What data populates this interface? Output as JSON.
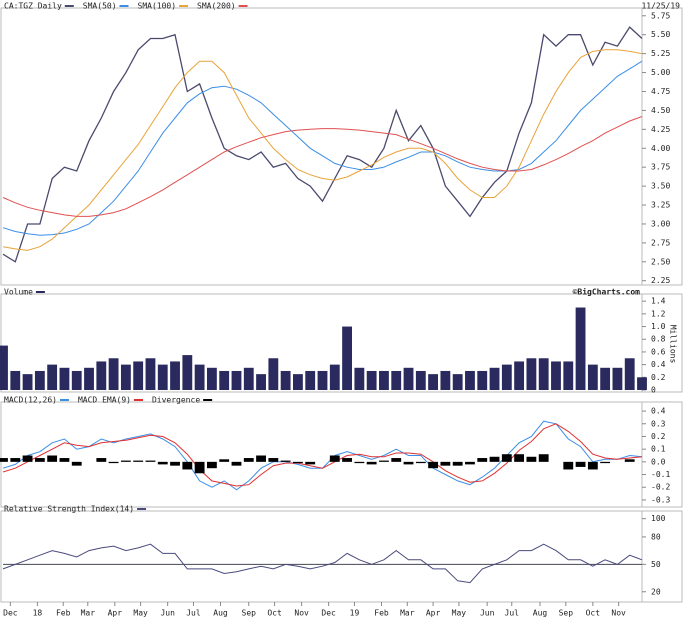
{
  "chart_data": [
    {
      "type": "line",
      "date": "11/25/19",
      "xlim": [
        0,
        52
      ],
      "ylim": [
        2.22,
        5.8
      ],
      "yticks": [
        2.25,
        {
          "value": 2.5,
          "label": "2.50"
        },
        2.75,
        {
          "value": 3,
          "label": "3.00"
        },
        3.25,
        {
          "value": 3.5,
          "label": "3.50"
        },
        3.75,
        {
          "value": 4,
          "label": "4.00"
        },
        4.25,
        {
          "value": 4.5,
          "label": "4.50"
        },
        4.75,
        {
          "value": 5,
          "label": "5.00"
        },
        5.25,
        {
          "value": 5.5,
          "label": "5.50"
        },
        5.75
      ],
      "series": [
        {
          "name": "CA:TGZ Daily",
          "color": "#4a4a6e",
          "values": [
            2.6,
            2.5,
            3.0,
            3.0,
            3.6,
            3.75,
            3.7,
            4.1,
            4.4,
            4.75,
            5.0,
            5.3,
            5.45,
            5.45,
            5.5,
            4.75,
            4.85,
            4.4,
            4.0,
            3.9,
            3.85,
            3.95,
            3.75,
            3.8,
            3.6,
            3.5,
            3.3,
            3.6,
            3.9,
            3.85,
            3.75,
            4.0,
            4.5,
            4.1,
            4.3,
            4.0,
            3.5,
            3.3,
            3.1,
            3.35,
            3.55,
            3.7,
            4.2,
            4.6,
            5.5,
            5.35,
            5.5,
            5.5,
            5.1,
            5.4,
            5.35,
            5.6,
            5.45
          ]
        },
        {
          "name": "SMA(50)",
          "color": "#3a8ee6",
          "values": [
            2.95,
            2.9,
            2.87,
            2.85,
            2.86,
            2.88,
            2.93,
            3.0,
            3.15,
            3.3,
            3.5,
            3.7,
            3.95,
            4.2,
            4.4,
            4.6,
            4.72,
            4.8,
            4.82,
            4.78,
            4.7,
            4.6,
            4.45,
            4.3,
            4.15,
            4.0,
            3.9,
            3.8,
            3.75,
            3.72,
            3.72,
            3.75,
            3.82,
            3.88,
            3.95,
            3.95,
            3.9,
            3.82,
            3.75,
            3.72,
            3.7,
            3.7,
            3.72,
            3.8,
            3.95,
            4.1,
            4.3,
            4.5,
            4.65,
            4.8,
            4.95,
            5.05,
            5.15
          ]
        },
        {
          "name": "SMA(100)",
          "color": "#e8a33a",
          "values": [
            2.7,
            2.67,
            2.65,
            2.7,
            2.8,
            2.95,
            3.1,
            3.25,
            3.45,
            3.65,
            3.85,
            4.05,
            4.3,
            4.55,
            4.8,
            5.0,
            5.15,
            5.15,
            5.0,
            4.7,
            4.4,
            4.2,
            4.0,
            3.85,
            3.72,
            3.65,
            3.6,
            3.58,
            3.62,
            3.7,
            3.78,
            3.88,
            3.95,
            4.0,
            4.0,
            3.95,
            3.8,
            3.6,
            3.45,
            3.35,
            3.35,
            3.5,
            3.75,
            4.1,
            4.45,
            4.75,
            5.0,
            5.2,
            5.28,
            5.3,
            5.3,
            5.28,
            5.25
          ]
        },
        {
          "name": "SMA(200)",
          "color": "#e05050",
          "values": [
            3.35,
            3.28,
            3.22,
            3.18,
            3.15,
            3.12,
            3.1,
            3.1,
            3.12,
            3.15,
            3.2,
            3.28,
            3.36,
            3.45,
            3.55,
            3.65,
            3.75,
            3.85,
            3.95,
            4.02,
            4.08,
            4.14,
            4.18,
            4.22,
            4.24,
            4.25,
            4.26,
            4.26,
            4.25,
            4.24,
            4.22,
            4.2,
            4.18,
            4.12,
            4.06,
            4.0,
            3.93,
            3.86,
            3.8,
            3.75,
            3.72,
            3.7,
            3.7,
            3.72,
            3.78,
            3.85,
            3.93,
            4.02,
            4.1,
            4.2,
            4.28,
            4.36,
            4.42
          ]
        }
      ]
    },
    {
      "type": "bar",
      "credit": "©BigCharts.com",
      "y_label": "Millions",
      "xlim": [
        0,
        52
      ],
      "ylim": [
        0,
        1.45
      ],
      "yticks": [
        0,
        0.2,
        0.4,
        0.6,
        0.8,
        {
          "value": 1,
          "label": "1.0"
        },
        1.2,
        1.4
      ],
      "series": [
        {
          "name": "Volume",
          "color": "#2a2a5e",
          "values": [
            0.7,
            0.3,
            0.25,
            0.3,
            0.4,
            0.35,
            0.3,
            0.35,
            0.45,
            0.5,
            0.4,
            0.45,
            0.5,
            0.4,
            0.45,
            0.55,
            0.4,
            0.35,
            0.3,
            0.3,
            0.35,
            0.25,
            0.5,
            0.3,
            0.25,
            0.3,
            0.3,
            0.4,
            1.0,
            0.35,
            0.3,
            0.3,
            0.3,
            0.35,
            0.3,
            0.25,
            0.3,
            0.25,
            0.3,
            0.3,
            0.35,
            0.4,
            0.45,
            0.5,
            0.5,
            0.45,
            0.45,
            1.3,
            0.4,
            0.35,
            0.35,
            0.5,
            0.2
          ]
        }
      ]
    },
    {
      "type": "line",
      "xlim": [
        0,
        52
      ],
      "ylim": [
        -0.34,
        0.44
      ],
      "yticks": [
        0.4,
        0.3,
        0.2,
        0.1,
        {
          "value": 0,
          "label": "0.0"
        },
        -0.1,
        -0.2,
        -0.3
      ],
      "series": [
        {
          "name": "MACD(12,26)",
          "color": "#3a8ee6",
          "values": [
            -0.05,
            -0.02,
            0.05,
            0.08,
            0.15,
            0.18,
            0.1,
            0.12,
            0.18,
            0.15,
            0.18,
            0.2,
            0.22,
            0.18,
            0.12,
            0.0,
            -0.15,
            -0.2,
            -0.15,
            -0.22,
            -0.15,
            -0.05,
            0.0,
            0.0,
            -0.02,
            -0.05,
            -0.05,
            0.05,
            0.08,
            0.05,
            0.02,
            0.05,
            0.1,
            0.05,
            0.05,
            -0.05,
            -0.1,
            -0.15,
            -0.18,
            -0.12,
            -0.05,
            0.05,
            0.15,
            0.2,
            0.32,
            0.3,
            0.18,
            0.12,
            0.0,
            0.02,
            0.02,
            0.05,
            0.04
          ]
        },
        {
          "name": "MACD EMA(9)",
          "color": "#e03030",
          "values": [
            -0.08,
            -0.05,
            0.0,
            0.05,
            0.1,
            0.15,
            0.13,
            0.12,
            0.15,
            0.16,
            0.17,
            0.19,
            0.21,
            0.2,
            0.15,
            0.06,
            -0.06,
            -0.15,
            -0.17,
            -0.19,
            -0.18,
            -0.1,
            -0.03,
            -0.01,
            -0.01,
            -0.03,
            -0.05,
            0.0,
            0.05,
            0.06,
            0.04,
            0.04,
            0.07,
            0.07,
            0.06,
            0.0,
            -0.07,
            -0.12,
            -0.16,
            -0.15,
            -0.09,
            -0.01,
            0.09,
            0.16,
            0.26,
            0.3,
            0.24,
            0.16,
            0.06,
            0.03,
            0.02,
            0.03,
            0.04
          ]
        },
        {
          "name": "Divergence",
          "color": "#000000",
          "type": "bar",
          "values": [
            0.03,
            0.03,
            0.05,
            0.03,
            0.05,
            0.03,
            -0.03,
            0,
            0.03,
            -0.01,
            0.01,
            0.01,
            0.01,
            -0.02,
            -0.03,
            -0.06,
            -0.09,
            -0.05,
            0.02,
            -0.03,
            0.03,
            0.05,
            0.03,
            0.01,
            -0.01,
            -0.02,
            0,
            0.05,
            0.03,
            -0.01,
            -0.02,
            0.01,
            0.03,
            -0.02,
            -0.01,
            -0.05,
            -0.03,
            -0.03,
            -0.02,
            0.03,
            0.04,
            0.06,
            0.06,
            0.04,
            0.06,
            0,
            -0.06,
            -0.04,
            -0.06,
            -0.01,
            0,
            0.02,
            0
          ]
        }
      ]
    },
    {
      "type": "line",
      "xlim": [
        0,
        52
      ],
      "ylim": [
        11,
        104
      ],
      "yticks": [
        100,
        80,
        50,
        20
      ],
      "hline": 50,
      "xticks": [
        {
          "value": 0.6,
          "label": "Dec"
        },
        {
          "value": 2.8,
          "label": "18"
        },
        {
          "value": 4.9,
          "label": "Feb"
        },
        {
          "value": 6.9,
          "label": "Mar"
        },
        {
          "value": 9.1,
          "label": "Apr"
        },
        {
          "value": 11.2,
          "label": "May"
        },
        {
          "value": 13.4,
          "label": "Jun"
        },
        {
          "value": 15.5,
          "label": "Jul"
        },
        {
          "value": 17.7,
          "label": "Aug"
        },
        {
          "value": 20,
          "label": "Sep"
        },
        {
          "value": 22.1,
          "label": "Oct"
        },
        {
          "value": 24.3,
          "label": "Nov"
        },
        {
          "value": 26.5,
          "label": "Dec"
        },
        {
          "value": 28.6,
          "label": "19"
        },
        {
          "value": 30.8,
          "label": "Feb"
        },
        {
          "value": 32.9,
          "label": "Mar"
        },
        {
          "value": 35,
          "label": "Apr"
        },
        {
          "value": 37.1,
          "label": "May"
        },
        {
          "value": 39.4,
          "label": "Jun"
        },
        {
          "value": 41.4,
          "label": "Jul"
        },
        {
          "value": 43.7,
          "label": "Aug"
        },
        {
          "value": 45.8,
          "label": "Sep"
        },
        {
          "value": 48,
          "label": "Oct"
        },
        {
          "value": 50.1,
          "label": "Nov"
        }
      ],
      "series": [
        {
          "name": "Relative Strength Index(14)",
          "color": "#4a4a7e",
          "values": [
            45,
            50,
            55,
            60,
            65,
            62,
            58,
            65,
            68,
            70,
            65,
            68,
            72,
            62,
            62,
            45,
            45,
            45,
            40,
            42,
            45,
            48,
            45,
            50,
            48,
            45,
            48,
            52,
            62,
            55,
            50,
            55,
            65,
            55,
            55,
            45,
            45,
            32,
            30,
            45,
            50,
            55,
            65,
            65,
            72,
            65,
            55,
            55,
            48,
            55,
            50,
            60,
            55
          ]
        }
      ]
    }
  ]
}
